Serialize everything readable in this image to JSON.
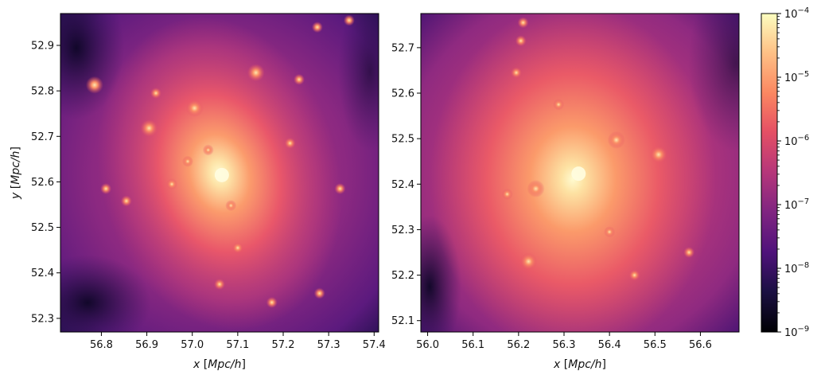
{
  "chart_data": [
    {
      "type": "heatmap",
      "description_panel": "left",
      "xlabel_var": "x",
      "xlabel_unit": "Mpc/h",
      "ylabel_var": "y",
      "ylabel_unit": "Mpc/h",
      "xlim": [
        56.71,
        57.41
      ],
      "ylim": [
        52.27,
        52.97
      ],
      "x_ticks": [
        56.8,
        56.9,
        57.0,
        57.1,
        57.2,
        57.3,
        57.4
      ],
      "x_tick_labels": [
        "56.8",
        "56.9",
        "57.0",
        "57.1",
        "57.2",
        "57.3",
        "57.4"
      ],
      "y_ticks": [
        52.3,
        52.4,
        52.5,
        52.6,
        52.7,
        52.8,
        52.9
      ],
      "y_tick_labels": [
        "52.3",
        "52.4",
        "52.5",
        "52.6",
        "52.7",
        "52.8",
        "52.9"
      ],
      "colormap": "magma",
      "halo_center": [
        57.065,
        52.615
      ],
      "subhalos": [
        [
          57.005,
          52.762
        ],
        [
          56.905,
          52.718
        ],
        [
          56.785,
          52.813
        ],
        [
          57.14,
          52.84
        ],
        [
          57.1,
          52.455
        ],
        [
          57.06,
          52.375
        ],
        [
          57.28,
          52.355
        ],
        [
          57.325,
          52.585
        ],
        [
          56.855,
          52.558
        ],
        [
          57.085,
          52.548
        ],
        [
          57.215,
          52.685
        ],
        [
          57.275,
          52.94
        ],
        [
          57.345,
          52.955
        ],
        [
          56.81,
          52.585
        ],
        [
          57.175,
          52.335
        ],
        [
          56.955,
          52.595
        ],
        [
          57.235,
          52.825
        ],
        [
          56.92,
          52.795
        ],
        [
          57.035,
          52.67
        ],
        [
          56.99,
          52.645
        ]
      ]
    },
    {
      "type": "heatmap",
      "description_panel": "right",
      "xlabel_var": "x",
      "xlabel_unit": "Mpc/h",
      "xlim": [
        55.985,
        56.685
      ],
      "ylim": [
        52.075,
        52.775
      ],
      "x_ticks": [
        56.0,
        56.1,
        56.2,
        56.3,
        56.4,
        56.5,
        56.6
      ],
      "x_tick_labels": [
        "56.0",
        "56.1",
        "56.2",
        "56.3",
        "56.4",
        "56.5",
        "56.6"
      ],
      "y_ticks": [
        52.1,
        52.2,
        52.3,
        52.4,
        52.5,
        52.6,
        52.7
      ],
      "y_tick_labels": [
        "52.1",
        "52.2",
        "52.3",
        "52.4",
        "52.5",
        "52.6",
        "52.7"
      ],
      "colormap": "magma",
      "halo_center": [
        56.332,
        52.423
      ],
      "subhalos": [
        [
          56.415,
          52.497
        ],
        [
          56.508,
          52.465
        ],
        [
          56.238,
          52.39
        ],
        [
          56.222,
          52.23
        ],
        [
          56.455,
          52.2
        ],
        [
          56.195,
          52.645
        ],
        [
          56.205,
          52.715
        ],
        [
          56.21,
          52.755
        ],
        [
          56.288,
          52.575
        ],
        [
          56.175,
          52.378
        ],
        [
          56.575,
          52.25
        ],
        [
          56.4,
          52.295
        ]
      ]
    }
  ],
  "colorbar": {
    "scale": "log",
    "range": [
      1e-09,
      0.0001
    ],
    "ticks": [
      {
        "value": 1e-09,
        "base": "10",
        "exp": "−9"
      },
      {
        "value": 1e-08,
        "base": "10",
        "exp": "−8"
      },
      {
        "value": 1e-07,
        "base": "10",
        "exp": "−7"
      },
      {
        "value": 1e-06,
        "base": "10",
        "exp": "−6"
      },
      {
        "value": 1e-05,
        "base": "10",
        "exp": "−5"
      },
      {
        "value": 0.0001,
        "base": "10",
        "exp": "−4"
      }
    ],
    "colormap": "magma"
  }
}
